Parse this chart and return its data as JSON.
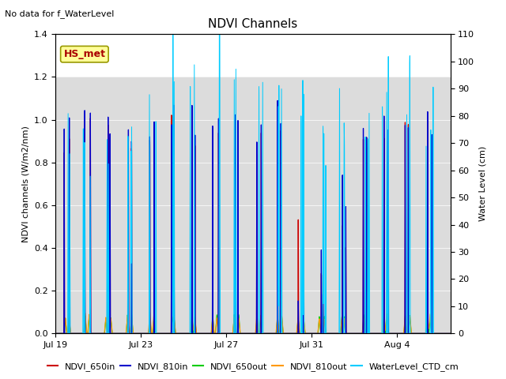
{
  "title": "NDVI Channels",
  "subtitle": "No data for f_WaterLevel",
  "ylabel_left": "NDVI channels (W/m2/nm)",
  "ylabel_right": "Water Level (cm)",
  "ylim_left": [
    0.0,
    1.4
  ],
  "ylim_right": [
    0,
    110
  ],
  "yticks_left": [
    0.0,
    0.2,
    0.4,
    0.6,
    0.8,
    1.0,
    1.2,
    1.4
  ],
  "yticks_right": [
    0,
    10,
    20,
    30,
    40,
    50,
    60,
    70,
    80,
    90,
    100,
    110
  ],
  "colors": {
    "NDVI_650in": "#cc0000",
    "NDVI_810in": "#0000cc",
    "NDVI_650out": "#00cc00",
    "NDVI_810out": "#ff9900",
    "WaterLevel_CTD_cm": "#00ccff"
  },
  "x_tick_labels": [
    "Jul 19",
    "Jul 23",
    "Jul 27",
    "Jul 31",
    "Aug 4"
  ],
  "title_fontsize": 11,
  "label_fontsize": 8,
  "tick_fontsize": 8,
  "legend_fontsize": 8,
  "background_band_color": "#dcdcdc",
  "fig_width": 6.4,
  "fig_height": 4.8,
  "fig_dpi": 100
}
